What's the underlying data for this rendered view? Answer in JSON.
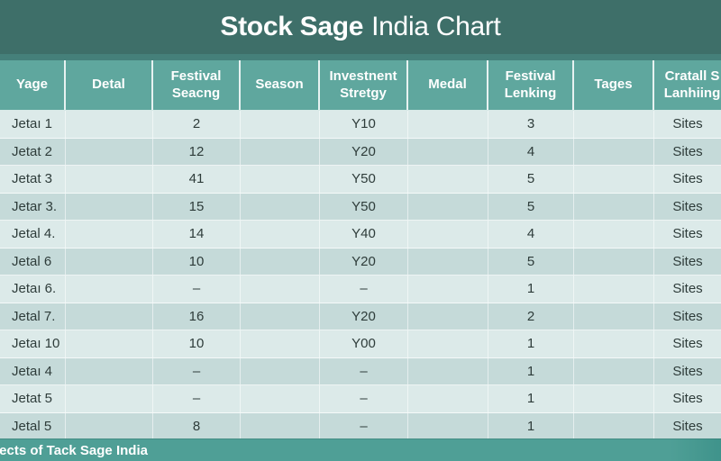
{
  "title": {
    "bold": "Stock Sage",
    "regular": "India Chart"
  },
  "chart_data": {
    "type": "table",
    "title": "Stock Sage India Chart",
    "columns": [
      "Yage",
      "Detal",
      "Festival Seacng",
      "Season",
      "Investnent Stretgy",
      "Medal",
      "Festival Lenking",
      "Tages",
      "Cratall S Lanhiing"
    ],
    "rows": [
      [
        "Jetaı 1",
        "",
        "2",
        "",
        "Y10",
        "",
        "3",
        "",
        "Sites"
      ],
      [
        "Jetat 2",
        "",
        "12",
        "",
        "Y20",
        "",
        "4",
        "",
        "Sites"
      ],
      [
        "Jetat 3",
        "",
        "41",
        "",
        "Y50",
        "",
        "5",
        "",
        "Sites"
      ],
      [
        "Jetar 3.",
        "",
        "15",
        "",
        "Y50",
        "",
        "5",
        "",
        "Sites"
      ],
      [
        "Jetal 4.",
        "",
        "14",
        "",
        "Y40",
        "",
        "4",
        "",
        "Sites"
      ],
      [
        "Jetal 6",
        "",
        "10",
        "",
        "Y20",
        "",
        "5",
        "",
        "Sites"
      ],
      [
        "Jetaı 6.",
        "",
        "–",
        "",
        "–",
        "",
        "1",
        "",
        "Sites"
      ],
      [
        "Jetal 7.",
        "",
        "16",
        "",
        "Y20",
        "",
        "2",
        "",
        "Sites"
      ],
      [
        "Jetaı 10",
        "",
        "10",
        "",
        "Y00",
        "",
        "1",
        "",
        "Sites"
      ],
      [
        "Jetaı 4",
        "",
        "–",
        "",
        "–",
        "",
        "1",
        "",
        "Sites"
      ],
      [
        "Jetat 5",
        "",
        "–",
        "",
        "–",
        "",
        "1",
        "",
        "Sites"
      ],
      [
        "Jetal 5",
        "",
        "8",
        "",
        "–",
        "",
        "1",
        "",
        "Sites"
      ]
    ]
  },
  "footer": {
    "text": "lects of Tack Sage India"
  },
  "colors": {
    "title_bg": "#3e6f69",
    "strip_bg": "#45807a",
    "header_bg": "#5fa79e",
    "row_odd": "#dceae9",
    "row_even": "#c5dad9",
    "cell_text": "#2e3c3a",
    "footer_bg": "#4f9f96",
    "footer_bg_dark": "#3f938b"
  }
}
